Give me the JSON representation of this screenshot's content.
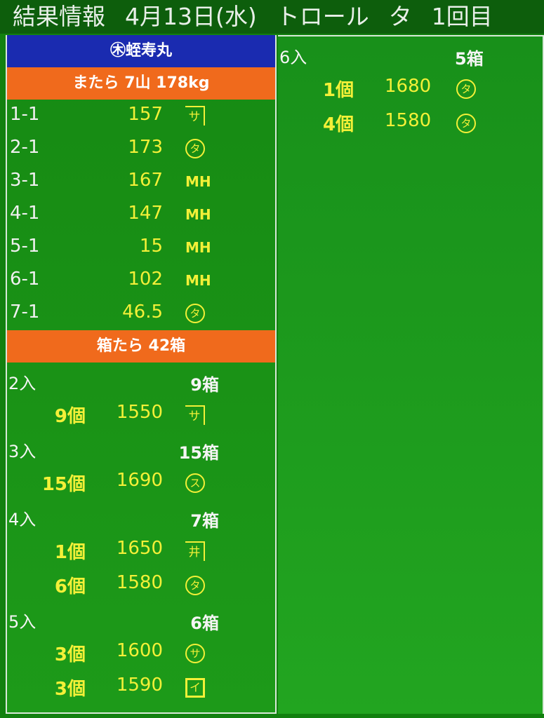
{
  "title": {
    "label": "結果情報",
    "date": "4月13日(水)",
    "method": "トロール",
    "session": "タ",
    "round": "1回目"
  },
  "left": {
    "vessel": "㊍蛭寿丸",
    "lot_header": "またら 7山 178kg",
    "lots": [
      {
        "id": "1-1",
        "value": "157",
        "mark": "サ",
        "mark_style": "bracket"
      },
      {
        "id": "2-1",
        "value": "173",
        "mark": "タ",
        "mark_style": "circled"
      },
      {
        "id": "3-1",
        "value": "167",
        "mark": "MH",
        "mark_style": "plain"
      },
      {
        "id": "4-1",
        "value": "147",
        "mark": "MH",
        "mark_style": "plain"
      },
      {
        "id": "5-1",
        "value": "15",
        "mark": "MH",
        "mark_style": "plain"
      },
      {
        "id": "6-1",
        "value": "102",
        "mark": "MH",
        "mark_style": "plain"
      },
      {
        "id": "7-1",
        "value": "46.5",
        "mark": "タ",
        "mark_style": "circled"
      }
    ],
    "box_header": "箱たら 42箱",
    "groups": [
      {
        "in": "2入",
        "boxes": "9箱",
        "items": [
          {
            "count": "9個",
            "price": "1550",
            "mark": "サ",
            "mark_style": "bracket"
          }
        ]
      },
      {
        "in": "3入",
        "boxes": "15箱",
        "items": [
          {
            "count": "15個",
            "price": "1690",
            "mark": "ス",
            "mark_style": "circled"
          }
        ]
      },
      {
        "in": "4入",
        "boxes": "7箱",
        "items": [
          {
            "count": "1個",
            "price": "1650",
            "mark": "井",
            "mark_style": "bracket"
          },
          {
            "count": "6個",
            "price": "1580",
            "mark": "タ",
            "mark_style": "circled"
          }
        ]
      },
      {
        "in": "5入",
        "boxes": "6箱",
        "items": [
          {
            "count": "3個",
            "price": "1600",
            "mark": "サ",
            "mark_style": "circled"
          },
          {
            "count": "3個",
            "price": "1590",
            "mark": "イ",
            "mark_style": "boxed"
          }
        ]
      }
    ]
  },
  "right": {
    "groups": [
      {
        "in": "6入",
        "boxes": "5箱",
        "items": [
          {
            "count": "1個",
            "price": "1680",
            "mark": "タ",
            "mark_style": "circled"
          },
          {
            "count": "4個",
            "price": "1580",
            "mark": "タ",
            "mark_style": "circled"
          }
        ]
      }
    ]
  }
}
